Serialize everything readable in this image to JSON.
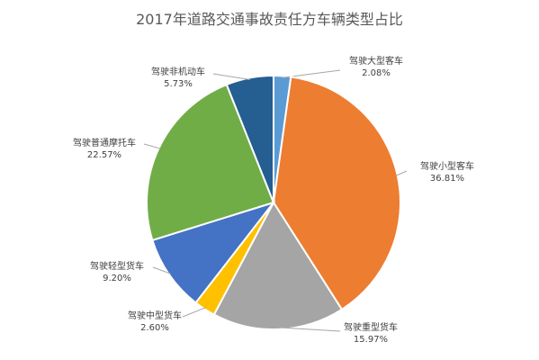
{
  "chart_data": {
    "type": "pie",
    "title": "2017年道路交通事故责任方车辆类型占比",
    "slices": [
      {
        "name": "驾驶大型客车",
        "value": 2.08,
        "label": "2.08%",
        "color": "#5B9BD5"
      },
      {
        "name": "驾驶小型客车",
        "value": 36.81,
        "label": "36.81%",
        "color": "#ED7D31"
      },
      {
        "name": "驾驶重型货车",
        "value": 15.97,
        "label": "15.97%",
        "color": "#A5A5A5"
      },
      {
        "name": "驾驶中型货车",
        "value": 2.6,
        "label": "2.60%",
        "color": "#FFC000"
      },
      {
        "name": "驾驶轻型货车",
        "value": 9.2,
        "label": "9.20%",
        "color": "#4472C4"
      },
      {
        "name": "驾驶普通摩托车",
        "value": 22.57,
        "label": "22.57%",
        "color": "#70AD47"
      },
      {
        "name": "驾驶非机动车",
        "value": 5.73,
        "label": "5.73%",
        "color": "#255E91"
      }
    ],
    "legend": "none"
  }
}
